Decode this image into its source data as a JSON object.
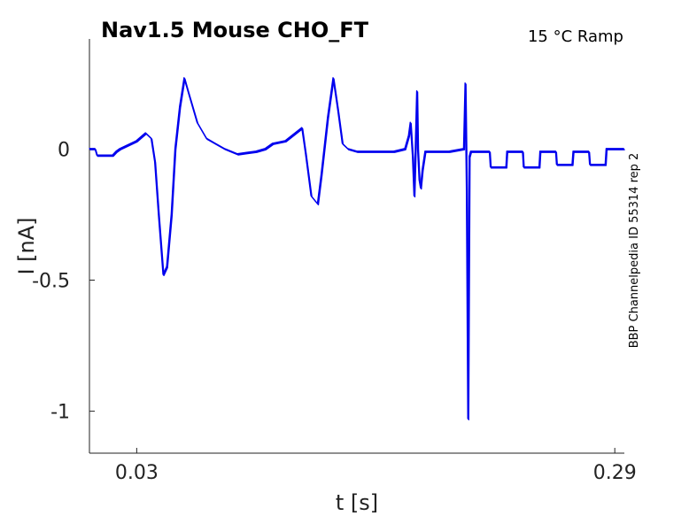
{
  "chart_data": {
    "type": "line",
    "title": "Nav1.5  Mouse  CHO_FT",
    "condition": "15 °C  Ramp",
    "side_label": "BBP Channelpedia ID 55314 rep 2",
    "xlabel": "t [s]",
    "ylabel": "I [nA]",
    "xlim": [
      0.0043,
      0.2952
    ],
    "ylim": [
      -1.16,
      0.42
    ],
    "x_ticks": [
      0.03,
      0.29
    ],
    "x_tick_labels": [
      "0.03",
      "0.29"
    ],
    "y_ticks": [
      0,
      -0.5,
      -1
    ],
    "y_tick_labels": [
      "0",
      "-0.5",
      "-1"
    ],
    "grid": false,
    "color": "#0000ee",
    "series": [
      {
        "x": [
          0.0043,
          0.0075,
          0.0085,
          0.01,
          0.017,
          0.019,
          0.021,
          0.03,
          0.035,
          0.038,
          0.04,
          0.042,
          0.0445,
          0.0465,
          0.049,
          0.051,
          0.0535,
          0.056,
          0.058,
          0.063,
          0.068,
          0.073,
          0.078,
          0.085,
          0.09,
          0.095,
          0.1,
          0.104,
          0.111,
          0.12,
          0.122,
          0.125,
          0.1285,
          0.1305,
          0.134,
          0.137,
          0.1395,
          0.142,
          0.145,
          0.15,
          0.16,
          0.17,
          0.176,
          0.178,
          0.179,
          0.1802,
          0.181,
          0.1818,
          0.1825,
          0.183,
          0.1838,
          0.1845,
          0.1855,
          0.187,
          0.19,
          0.2,
          0.208,
          0.2088,
          0.2095,
          0.2103,
          0.211,
          0.2118,
          0.215,
          0.222,
          0.2225,
          0.231,
          0.2315,
          0.24,
          0.2405,
          0.249,
          0.2495,
          0.258,
          0.2585,
          0.267,
          0.2675,
          0.276,
          0.2765,
          0.285,
          0.2855,
          0.2952
        ],
        "y": [
          0.0,
          0.0,
          -0.025,
          -0.025,
          -0.025,
          -0.01,
          0.0,
          0.03,
          0.06,
          0.04,
          -0.05,
          -0.25,
          -0.48,
          -0.45,
          -0.25,
          0.0,
          0.16,
          0.27,
          0.22,
          0.1,
          0.04,
          0.02,
          0.0,
          -0.02,
          -0.015,
          -0.01,
          0.0,
          0.02,
          0.03,
          0.08,
          -0.02,
          -0.18,
          -0.21,
          -0.1,
          0.12,
          0.27,
          0.15,
          0.02,
          0.0,
          -0.01,
          -0.01,
          -0.01,
          0.0,
          0.05,
          0.1,
          -0.03,
          -0.18,
          0.02,
          0.22,
          0.0,
          -0.12,
          -0.15,
          -0.08,
          -0.01,
          -0.01,
          -0.01,
          0.0,
          0.25,
          -0.15,
          -1.03,
          -0.03,
          -0.01,
          -0.01,
          -0.01,
          -0.07,
          -0.07,
          -0.01,
          -0.01,
          -0.07,
          -0.07,
          -0.01,
          -0.01,
          -0.06,
          -0.06,
          -0.01,
          -0.01,
          -0.06,
          -0.06,
          0.0,
          0.0
        ]
      }
    ]
  }
}
